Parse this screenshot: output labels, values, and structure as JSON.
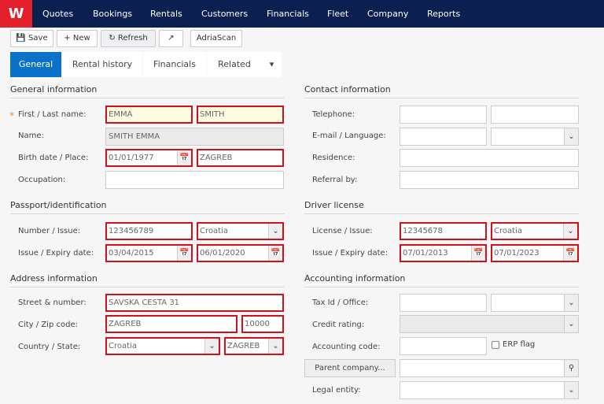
{
  "nav": {
    "items": [
      "Quotes",
      "Bookings",
      "Rentals",
      "Customers",
      "Financials",
      "Fleet",
      "Company",
      "Reports"
    ]
  },
  "toolbar": {
    "save": "Save",
    "new": "New",
    "refresh": "Refresh",
    "adriascan": "AdriaScan"
  },
  "tabs": [
    "General",
    "Rental history",
    "Financials",
    "Related"
  ],
  "general": {
    "title": "General information",
    "first_last_label": "First / Last name:",
    "first": "EMMA",
    "last": "SMITH",
    "name_label": "Name:",
    "name": "SMITH EMMA",
    "birth_label": "Birth date / Place:",
    "birth_date": "01/01/1977",
    "birth_place": "ZAGREB",
    "occupation_label": "Occupation:",
    "occupation": ""
  },
  "passport": {
    "title": "Passport/identification",
    "number_label": "Number / Issue:",
    "number": "123456789",
    "issue_country": "Croatia",
    "dates_label": "Issue / Expiry date:",
    "issue_date": "03/04/2015",
    "expiry_date": "06/01/2020"
  },
  "address": {
    "title": "Address information",
    "street_label": "Street & number:",
    "street": "SAVSKA CESTA 31",
    "city_label": "City / Zip code:",
    "city": "ZAGREB",
    "zip": "10000",
    "country_label": "Country / State:",
    "country": "Croatia",
    "state": "ZAGREB"
  },
  "contact": {
    "title": "Contact information",
    "telephone_label": "Telephone:",
    "email_label": "E-mail / Language:",
    "residence_label": "Residence:",
    "referral_label": "Referral by:"
  },
  "driver": {
    "title": "Driver license",
    "license_label": "License / Issue:",
    "license": "12345678",
    "issue_country": "Croatia",
    "dates_label": "Issue / Expiry date:",
    "issue_date": "07/01/2013",
    "expiry_date": "07/01/2023"
  },
  "accounting": {
    "title": "Accounting information",
    "tax_label": "Tax Id / Office:",
    "credit_label": "Credit rating:",
    "code_label": "Accounting code:",
    "erp_label": "ERP flag",
    "parent_button": "Parent company...",
    "legal_label": "Legal entity:"
  },
  "colors": {
    "nav": "#0b1f50",
    "brand": "#e3202b",
    "active_tab": "#0b72c9",
    "error_border": "#d0101a"
  }
}
